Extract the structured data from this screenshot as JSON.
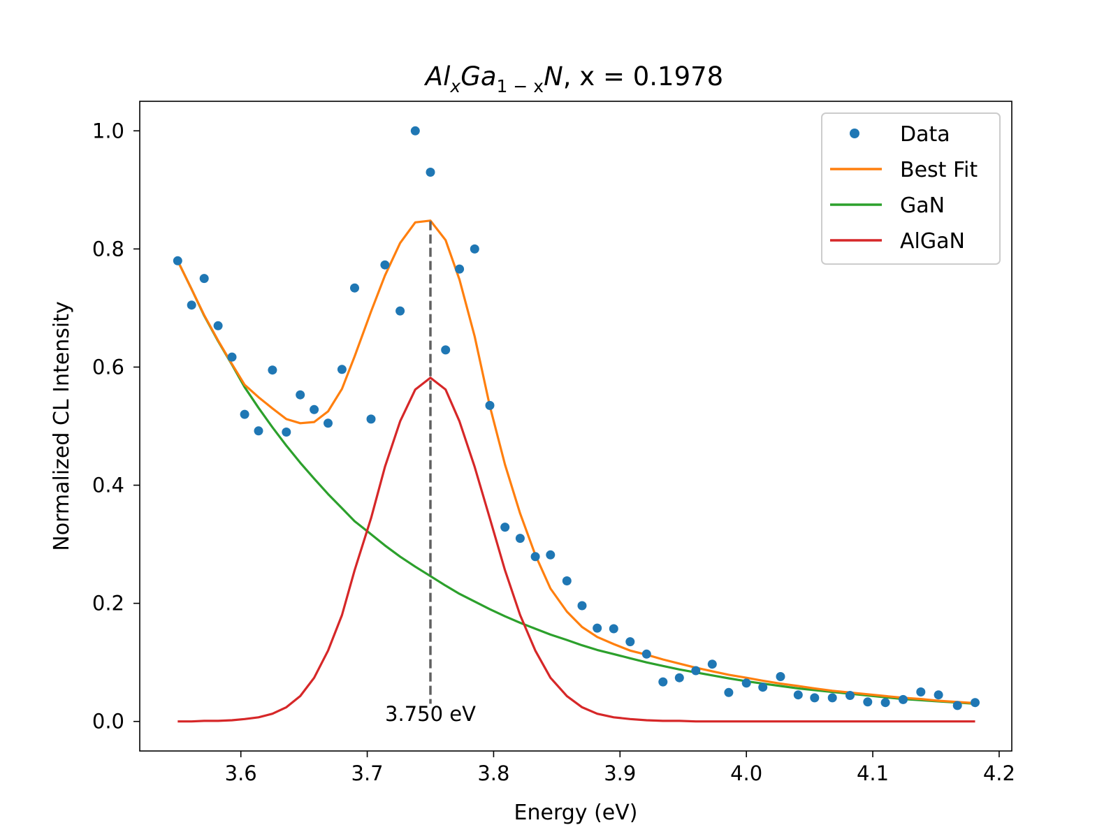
{
  "chart_data": {
    "type": "scatter",
    "title": {
      "al": "Al",
      "x_sub": "x",
      "ga": "Ga",
      "sub_1mx": "1 − x",
      "n": "N",
      "rest": ", x = 0.1978"
    },
    "xlabel": "Energy (eV)",
    "ylabel": "Normalized CL Intensity",
    "xlim": [
      3.52,
      4.21
    ],
    "ylim": [
      -0.05,
      1.05
    ],
    "xticks": [
      3.6,
      3.7,
      3.8,
      3.9,
      4.0,
      4.1,
      4.2
    ],
    "xtick_labels": [
      "3.6",
      "3.7",
      "3.8",
      "3.9",
      "4.0",
      "4.1",
      "4.2"
    ],
    "yticks": [
      0.0,
      0.2,
      0.4,
      0.6,
      0.8,
      1.0
    ],
    "ytick_labels": [
      "0.0",
      "0.2",
      "0.4",
      "0.6",
      "0.8",
      "1.0"
    ],
    "grid": false,
    "legend": {
      "position": "top-right",
      "entries": [
        "Data",
        "Best Fit",
        "GaN",
        "AlGaN"
      ]
    },
    "colors": {
      "data": "#1f77b4",
      "best_fit": "#ff7f0e",
      "gan": "#2ca02c",
      "algan": "#d62728",
      "peak_line": "#606060"
    },
    "peak": {
      "energy": 3.75,
      "label": "3.750 eV",
      "ymin": 0.03,
      "ymax": 0.847
    },
    "series": [
      {
        "name": "Data",
        "kind": "scatter",
        "x": [
          3.55,
          3.561,
          3.571,
          3.582,
          3.593,
          3.603,
          3.614,
          3.625,
          3.636,
          3.647,
          3.658,
          3.669,
          3.68,
          3.69,
          3.703,
          3.714,
          3.726,
          3.738,
          3.75,
          3.762,
          3.773,
          3.785,
          3.797,
          3.809,
          3.821,
          3.833,
          3.845,
          3.858,
          3.87,
          3.882,
          3.895,
          3.908,
          3.921,
          3.934,
          3.947,
          3.96,
          3.973,
          3.986,
          4.0,
          4.013,
          4.027,
          4.041,
          4.054,
          4.068,
          4.082,
          4.096,
          4.11,
          4.124,
          4.138,
          4.152,
          4.167,
          4.181
        ],
        "y": [
          0.78,
          0.705,
          0.75,
          0.67,
          0.617,
          0.52,
          0.492,
          0.595,
          0.49,
          0.553,
          0.528,
          0.505,
          0.596,
          0.734,
          0.512,
          0.773,
          0.695,
          1.0,
          0.93,
          0.629,
          0.766,
          0.8,
          0.535,
          0.329,
          0.31,
          0.279,
          0.282,
          0.238,
          0.196,
          0.158,
          0.157,
          0.135,
          0.114,
          0.067,
          0.074,
          0.086,
          0.097,
          0.049,
          0.065,
          0.058,
          0.076,
          0.045,
          0.04,
          0.04,
          0.044,
          0.033,
          0.032,
          0.037,
          0.05,
          0.045,
          0.027,
          0.032
        ]
      },
      {
        "name": "Best Fit",
        "kind": "line",
        "x": [
          3.55,
          3.561,
          3.571,
          3.582,
          3.593,
          3.603,
          3.614,
          3.625,
          3.636,
          3.647,
          3.658,
          3.669,
          3.68,
          3.69,
          3.703,
          3.714,
          3.726,
          3.738,
          3.75,
          3.762,
          3.773,
          3.785,
          3.797,
          3.809,
          3.821,
          3.833,
          3.845,
          3.858,
          3.87,
          3.882,
          3.895,
          3.908,
          3.921,
          3.934,
          3.947,
          3.96,
          3.973,
          3.986,
          4.0,
          4.013,
          4.027,
          4.041,
          4.054,
          4.068,
          4.082,
          4.096,
          4.11,
          4.124,
          4.138,
          4.152,
          4.167,
          4.181
        ],
        "y": [
          0.78,
          0.732,
          0.688,
          0.645,
          0.605,
          0.57,
          0.549,
          0.53,
          0.512,
          0.505,
          0.507,
          0.525,
          0.563,
          0.618,
          0.694,
          0.755,
          0.81,
          0.845,
          0.848,
          0.815,
          0.748,
          0.652,
          0.534,
          0.435,
          0.352,
          0.282,
          0.225,
          0.186,
          0.16,
          0.143,
          0.131,
          0.12,
          0.113,
          0.105,
          0.098,
          0.091,
          0.085,
          0.079,
          0.074,
          0.069,
          0.064,
          0.06,
          0.056,
          0.052,
          0.049,
          0.046,
          0.043,
          0.04,
          0.038,
          0.035,
          0.033,
          0.031
        ]
      },
      {
        "name": "GaN",
        "kind": "line",
        "x": [
          3.55,
          3.561,
          3.571,
          3.582,
          3.593,
          3.603,
          3.614,
          3.625,
          3.636,
          3.647,
          3.658,
          3.669,
          3.68,
          3.69,
          3.703,
          3.714,
          3.726,
          3.738,
          3.75,
          3.762,
          3.773,
          3.785,
          3.797,
          3.809,
          3.821,
          3.833,
          3.845,
          3.858,
          3.87,
          3.882,
          3.895,
          3.908,
          3.921,
          3.934,
          3.947,
          3.96,
          3.973,
          3.986,
          4.0,
          4.013,
          4.027,
          4.041,
          4.054,
          4.068,
          4.082,
          4.096,
          4.11,
          4.124,
          4.138,
          4.152,
          4.167,
          4.181
        ],
        "y": [
          0.78,
          0.732,
          0.687,
          0.644,
          0.604,
          0.566,
          0.531,
          0.498,
          0.467,
          0.438,
          0.411,
          0.385,
          0.361,
          0.339,
          0.317,
          0.298,
          0.279,
          0.262,
          0.246,
          0.23,
          0.216,
          0.203,
          0.19,
          0.178,
          0.167,
          0.157,
          0.147,
          0.138,
          0.129,
          0.121,
          0.114,
          0.107,
          0.1,
          0.094,
          0.088,
          0.083,
          0.078,
          0.073,
          0.068,
          0.064,
          0.06,
          0.056,
          0.053,
          0.05,
          0.047,
          0.044,
          0.041,
          0.038,
          0.036,
          0.034,
          0.032,
          0.03
        ]
      },
      {
        "name": "AlGaN",
        "kind": "line",
        "x": [
          3.55,
          3.561,
          3.571,
          3.582,
          3.593,
          3.603,
          3.614,
          3.625,
          3.636,
          3.647,
          3.658,
          3.669,
          3.68,
          3.69,
          3.703,
          3.714,
          3.726,
          3.738,
          3.75,
          3.762,
          3.773,
          3.785,
          3.797,
          3.809,
          3.821,
          3.833,
          3.845,
          3.858,
          3.87,
          3.882,
          3.895,
          3.908,
          3.921,
          3.934,
          3.947,
          3.96,
          3.973,
          3.986,
          4.0,
          4.013,
          4.027,
          4.041,
          4.054,
          4.068,
          4.082,
          4.096,
          4.11,
          4.124,
          4.138,
          4.152,
          4.167,
          4.181
        ],
        "y": [
          0.0,
          0.0,
          0.001,
          0.001,
          0.002,
          0.004,
          0.007,
          0.013,
          0.024,
          0.043,
          0.074,
          0.12,
          0.18,
          0.256,
          0.344,
          0.431,
          0.508,
          0.562,
          0.582,
          0.562,
          0.508,
          0.431,
          0.344,
          0.256,
          0.18,
          0.12,
          0.074,
          0.043,
          0.024,
          0.013,
          0.007,
          0.004,
          0.002,
          0.001,
          0.001,
          0.0,
          0.0,
          0.0,
          0.0,
          0.0,
          0.0,
          0.0,
          0.0,
          0.0,
          0.0,
          0.0,
          0.0,
          0.0,
          0.0,
          0.0,
          0.0,
          0.0
        ]
      }
    ]
  }
}
